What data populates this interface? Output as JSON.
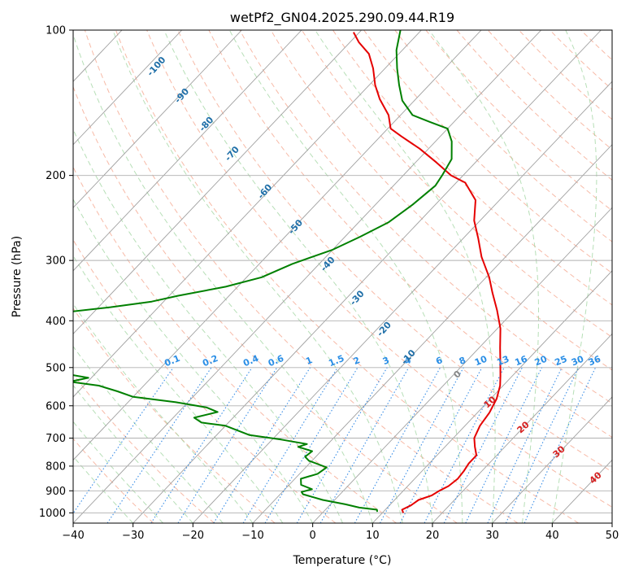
{
  "chart_data": {
    "type": "line",
    "title": "wetPf2_GN04.2025.290.09.44.R19",
    "xlabel": "Temperature (°C)",
    "ylabel": "Pressure (hPa)",
    "xlim": [
      -40,
      50
    ],
    "ylim": [
      1050,
      100
    ],
    "y_scale": "log",
    "grid": true,
    "x_ticks": [
      -40,
      -30,
      -20,
      -10,
      0,
      10,
      20,
      30,
      40,
      50
    ],
    "y_ticks": [
      100,
      200,
      300,
      400,
      500,
      600,
      700,
      800,
      900,
      1000
    ],
    "series": [
      {
        "color": "#e50000",
        "points": [
          [
            13.5,
            1000
          ],
          [
            12.8,
            985
          ],
          [
            13.6,
            965
          ],
          [
            14,
            940
          ],
          [
            15.5,
            920
          ],
          [
            16,
            900
          ],
          [
            16.8,
            880
          ],
          [
            17.2,
            850
          ],
          [
            17,
            820
          ],
          [
            16.6,
            790
          ],
          [
            16.6,
            760
          ],
          [
            15,
            730
          ],
          [
            13.5,
            700
          ],
          [
            12.5,
            660
          ],
          [
            12,
            620
          ],
          [
            11,
            580
          ],
          [
            9.5,
            545
          ],
          [
            8,
            520
          ],
          [
            6,
            490
          ],
          [
            3.5,
            455
          ],
          [
            0.5,
            415
          ],
          [
            -3,
            380
          ],
          [
            -6.5,
            350
          ],
          [
            -9.5,
            325
          ],
          [
            -14,
            295
          ],
          [
            -17.5,
            270
          ],
          [
            -21,
            248
          ],
          [
            -24,
            225
          ],
          [
            -28.5,
            207
          ],
          [
            -32,
            200
          ],
          [
            -36.5,
            188
          ],
          [
            -41.5,
            176
          ],
          [
            -46.5,
            166
          ],
          [
            -49.5,
            160
          ],
          [
            -52,
            150
          ],
          [
            -56,
            139
          ],
          [
            -59,
            130
          ],
          [
            -62,
            120
          ],
          [
            -65,
            112
          ],
          [
            -68.5,
            106
          ],
          [
            -71,
            101
          ]
        ]
      },
      {
        "color": "#008000",
        "points": [
          [
            9,
            995
          ],
          [
            8.6,
            985
          ],
          [
            5.3,
            975
          ],
          [
            2.5,
            960
          ],
          [
            -2,
            940
          ],
          [
            -6.2,
            915
          ],
          [
            -6.8,
            905
          ],
          [
            -5.5,
            893
          ],
          [
            -8,
            875
          ],
          [
            -9,
            850
          ],
          [
            -7,
            830
          ],
          [
            -6.5,
            805
          ],
          [
            -10.5,
            780
          ],
          [
            -11.8,
            765
          ],
          [
            -11.5,
            745
          ],
          [
            -14.5,
            730
          ],
          [
            -13.5,
            720
          ],
          [
            -18.5,
            705
          ],
          [
            -24.5,
            690
          ],
          [
            -30,
            660
          ],
          [
            -34.5,
            650
          ],
          [
            -36.5,
            635
          ],
          [
            -33.5,
            618
          ],
          [
            -36,
            605
          ],
          [
            -42,
            590
          ],
          [
            -50,
            575
          ],
          [
            -53.5,
            560
          ],
          [
            -57.5,
            545
          ],
          [
            -63,
            535
          ],
          [
            -60.5,
            525
          ],
          [
            -65,
            515
          ],
          [
            -68.5,
            500
          ],
          [
            -70,
            480
          ],
          [
            -70.5,
            470
          ],
          [
            -71.5,
            455
          ],
          [
            -72.5,
            440
          ],
          [
            -74,
            425
          ],
          [
            -75,
            400
          ],
          [
            -74,
            383
          ],
          [
            -68,
            375
          ],
          [
            -62,
            365
          ],
          [
            -58.5,
            355
          ],
          [
            -52,
            340
          ],
          [
            -47.5,
            325
          ],
          [
            -44.5,
            305
          ],
          [
            -40,
            285
          ],
          [
            -37.5,
            268
          ],
          [
            -35,
            250
          ],
          [
            -33.8,
            230
          ],
          [
            -33,
            210
          ],
          [
            -33.5,
            200
          ],
          [
            -34.5,
            185
          ],
          [
            -37.3,
            170
          ],
          [
            -40,
            160
          ],
          [
            -44,
            155
          ],
          [
            -48,
            150
          ],
          [
            -52,
            140
          ],
          [
            -55,
            130
          ],
          [
            -58,
            120
          ],
          [
            -61,
            110
          ],
          [
            -63.5,
            100
          ]
        ]
      }
    ],
    "dry_adiabat_labels": [
      "-100",
      "-90",
      "-80",
      "-70",
      "-60",
      "-50",
      "-40",
      "-30",
      "-20",
      "-10"
    ],
    "moist_adiabat_labels": [
      "0",
      "10",
      "20",
      "30",
      "40"
    ],
    "mixing_ratio_labels": [
      "0.1",
      "0.2",
      "0.4",
      "0.6",
      "1",
      "1.5",
      "2",
      "3",
      "4",
      "6",
      "8",
      "10",
      "13",
      "16",
      "20",
      "25",
      "30",
      "36"
    ],
    "colors": {
      "isotherm": "#a0a0a0",
      "isobar": "#b0b0b0",
      "dry_adiabat": "#f4a38a",
      "moist_adiabat": "#9fd49f",
      "mixing_ratio": "#3a8ee6",
      "dry_label": "#1f6fa8",
      "mixing_label": "#2a8ee6",
      "moist_label": "#d62020"
    }
  }
}
